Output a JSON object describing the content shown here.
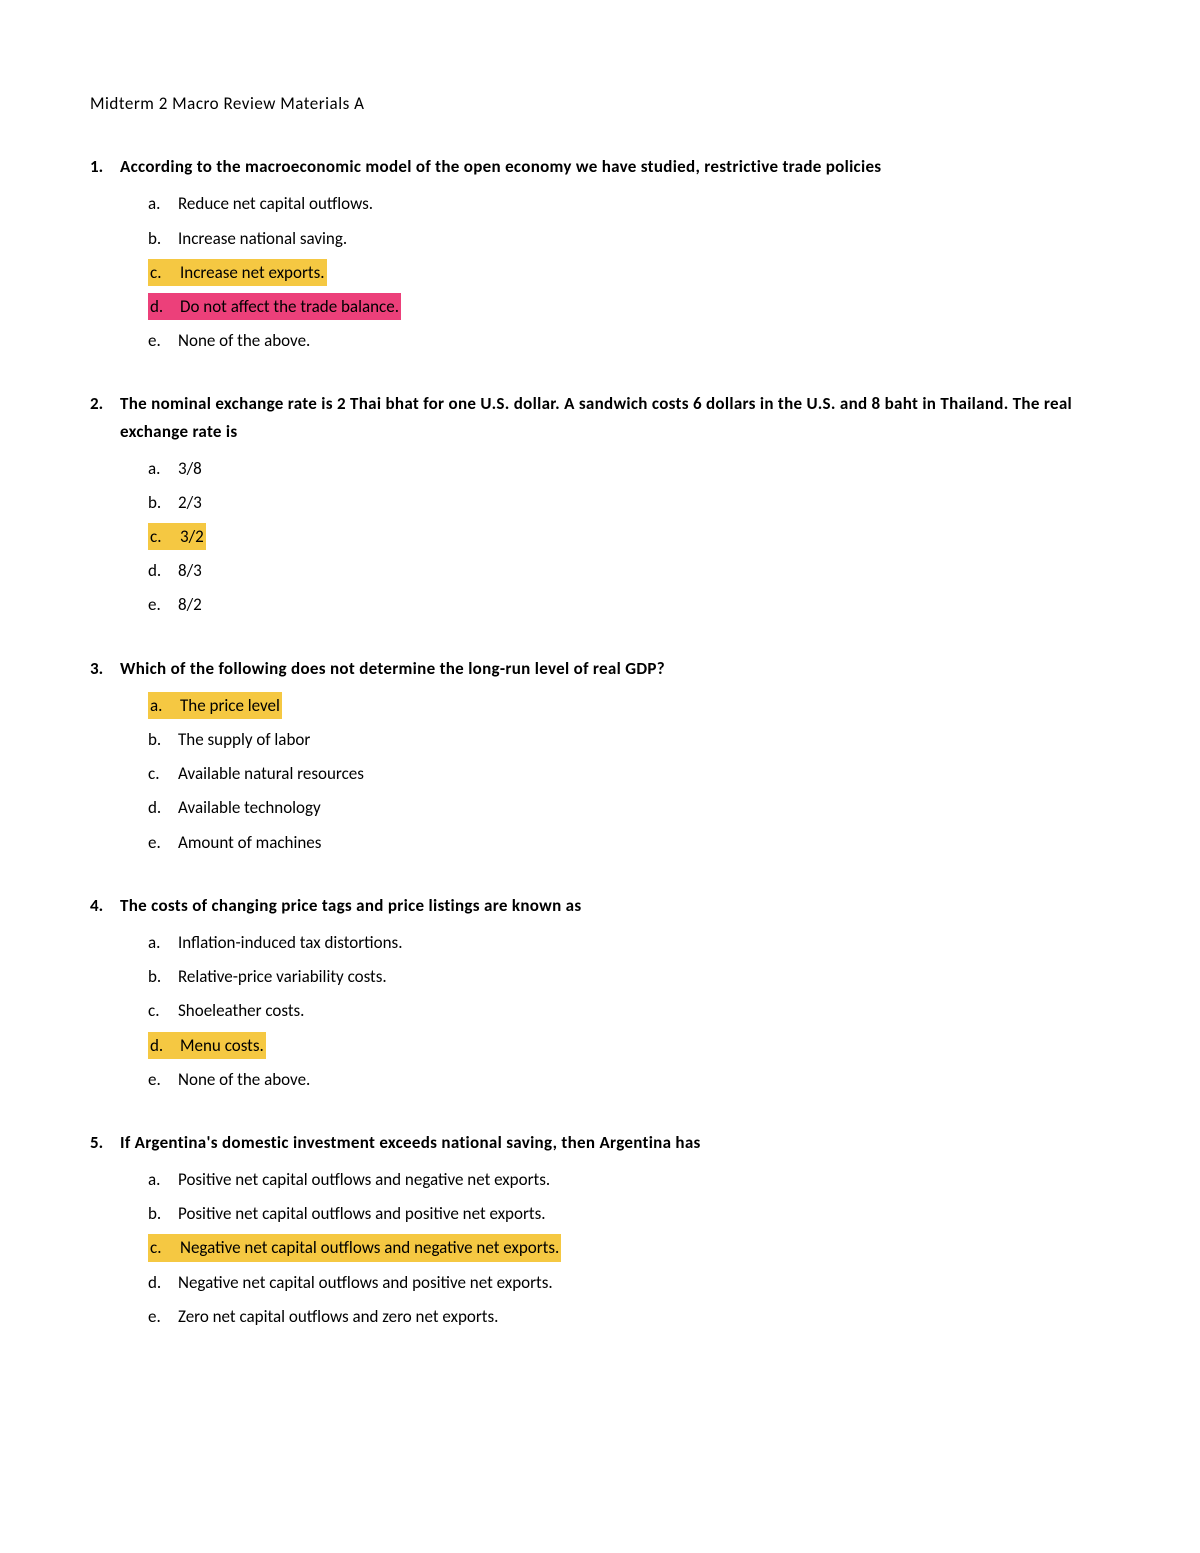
{
  "title": "Midterm 2 Macro Review Materials A",
  "colors": {
    "highlight_yellow": "#f5c842",
    "highlight_pink": "#ec407a",
    "text": "#000000",
    "background": "#ffffff"
  },
  "typography": {
    "font_family": "Calibri",
    "font_size_pt": 13,
    "line_height": 1.6
  },
  "questions": [
    {
      "number": "1.",
      "text": "According to the macroeconomic model of the open economy we have studied, restrictive trade policies",
      "options": [
        {
          "letter": "a.",
          "text": "Reduce net capital outflows.",
          "highlight": null
        },
        {
          "letter": "b.",
          "text": "Increase national saving.",
          "highlight": null
        },
        {
          "letter": "c.",
          "text": "Increase net exports.",
          "highlight": "yellow"
        },
        {
          "letter": "d.",
          "text": "Do not affect the trade balance.",
          "highlight": "pink"
        },
        {
          "letter": "e.",
          "text": "None of the above.",
          "highlight": null
        }
      ]
    },
    {
      "number": "2.",
      "text": "The nominal exchange rate is 2 Thai bhat for one U.S. dollar. A sandwich costs 6 dollars in the U.S. and 8 baht in Thailand. The real exchange rate is",
      "options": [
        {
          "letter": "a.",
          "text": "3/8",
          "highlight": null
        },
        {
          "letter": "b.",
          "text": "2/3",
          "highlight": null
        },
        {
          "letter": "c.",
          "text": "3/2",
          "highlight": "yellow"
        },
        {
          "letter": "d.",
          "text": "8/3",
          "highlight": null
        },
        {
          "letter": "e.",
          "text": "8/2",
          "highlight": null
        }
      ]
    },
    {
      "number": "3.",
      "text": "Which of the following does not determine the long-run level of real GDP?",
      "options": [
        {
          "letter": "a.",
          "text": "The price level",
          "highlight": "yellow"
        },
        {
          "letter": "b.",
          "text": "The supply of labor",
          "highlight": null
        },
        {
          "letter": "c.",
          "text": "Available natural resources",
          "highlight": null
        },
        {
          "letter": "d.",
          "text": "Available technology",
          "highlight": null
        },
        {
          "letter": "e.",
          "text": "Amount of machines",
          "highlight": null
        }
      ]
    },
    {
      "number": "4.",
      "text": "The costs of changing price tags and price listings are known as",
      "options": [
        {
          "letter": "a.",
          "text": "Inflation-induced tax distortions.",
          "highlight": null
        },
        {
          "letter": "b.",
          "text": "Relative-price variability costs.",
          "highlight": null
        },
        {
          "letter": "c.",
          "text": "Shoeleather costs.",
          "highlight": null
        },
        {
          "letter": "d.",
          "text": "Menu costs.",
          "highlight": "yellow"
        },
        {
          "letter": "e.",
          "text": "None of the above.",
          "highlight": null
        }
      ]
    },
    {
      "number": "5.",
      "text": "If Argentina's domestic investment exceeds national saving, then Argentina has",
      "options": [
        {
          "letter": "a.",
          "text": "Positive net capital outflows and negative net exports.",
          "highlight": null
        },
        {
          "letter": "b.",
          "text": "Positive net capital outflows and positive net exports.",
          "highlight": null
        },
        {
          "letter": "c.",
          "text": "Negative net capital outflows and negative net exports.",
          "highlight": "yellow"
        },
        {
          "letter": "d.",
          "text": "Negative net capital outflows and positive net exports.",
          "highlight": null
        },
        {
          "letter": "e.",
          "text": "Zero net capital outflows and zero net exports.",
          "highlight": null
        }
      ]
    }
  ]
}
